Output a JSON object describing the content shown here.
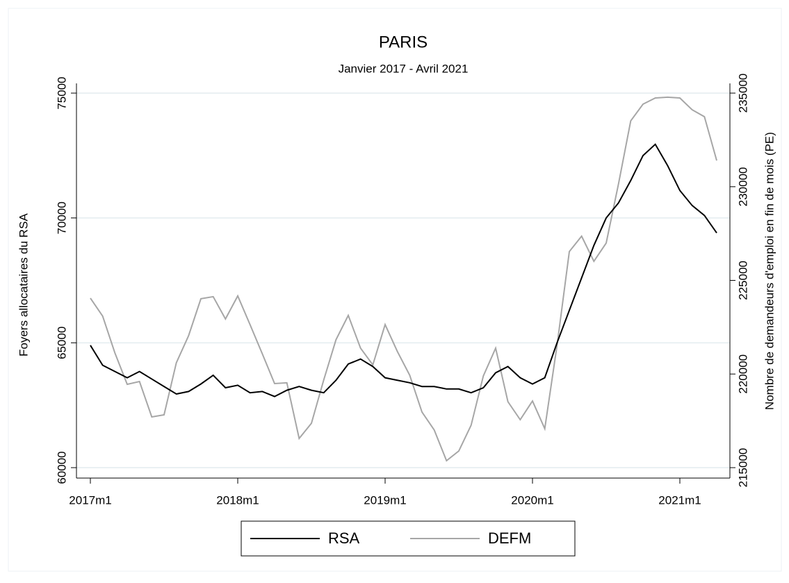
{
  "chart_data": {
    "type": "line",
    "title": "PARIS",
    "subtitle": "Janvier 2017 - Avril 2021",
    "y_label": "Foyers allocataires du RSA",
    "y2_label": "Nombre de demandeurs d'emploi en fin de mois (PE)",
    "x": [
      "2017m1",
      "2017m2",
      "2017m3",
      "2017m4",
      "2017m5",
      "2017m6",
      "2017m7",
      "2017m8",
      "2017m9",
      "2017m10",
      "2017m11",
      "2017m12",
      "2018m1",
      "2018m2",
      "2018m3",
      "2018m4",
      "2018m5",
      "2018m6",
      "2018m7",
      "2018m8",
      "2018m9",
      "2018m10",
      "2018m11",
      "2018m12",
      "2019m1",
      "2019m2",
      "2019m3",
      "2019m4",
      "2019m5",
      "2019m6",
      "2019m7",
      "2019m8",
      "2019m9",
      "2019m10",
      "2019m11",
      "2019m12",
      "2020m1",
      "2020m2",
      "2020m3",
      "2020m4",
      "2020m5",
      "2020m6",
      "2020m7",
      "2020m8",
      "2020m9",
      "2020m10",
      "2020m11",
      "2020m12",
      "2021m1",
      "2021m2",
      "2021m3",
      "2021m4"
    ],
    "xticks": [
      "2017m1",
      "2018m1",
      "2019m1",
      "2020m1",
      "2021m1"
    ],
    "ylim": [
      60000,
      75000
    ],
    "yticks": [
      60000,
      65000,
      70000,
      75000
    ],
    "y2lim": [
      215000,
      235000
    ],
    "y2ticks": [
      215000,
      220000,
      225000,
      230000,
      235000
    ],
    "grid": true,
    "legend": "bottom",
    "series": [
      {
        "name": "RSA",
        "color": "#000000",
        "values": [
          64900,
          64100,
          63850,
          63600,
          63850,
          63550,
          63250,
          62950,
          63050,
          63350,
          63700,
          63200,
          63300,
          63000,
          63050,
          62850,
          63100,
          63250,
          63100,
          63000,
          63500,
          64150,
          64350,
          64050,
          63600,
          63500,
          63400,
          63250,
          63250,
          63150,
          63150,
          63000,
          63200,
          63800,
          64050,
          63600,
          63350,
          63600,
          65000,
          66300,
          67600,
          68900,
          70000,
          70600,
          71500,
          72500,
          72950,
          72100,
          71100,
          70500,
          70100,
          69400
        ]
      },
      {
        "name": "DEFM",
        "color": "#a6a6a6",
        "axis": "y2",
        "values": [
          224050,
          223090,
          221120,
          219450,
          219600,
          217710,
          217820,
          220600,
          222050,
          224020,
          224130,
          222940,
          224170,
          222640,
          221080,
          219490,
          219530,
          216560,
          217370,
          219680,
          221830,
          223130,
          221380,
          220490,
          222640,
          221200,
          219940,
          217970,
          217010,
          215370,
          215890,
          217260,
          219900,
          221380,
          218520,
          217560,
          218560,
          217080,
          221530,
          226540,
          227360,
          226020,
          226990,
          230140,
          233520,
          234410,
          234740,
          234780,
          234740,
          234110,
          233740,
          231400
        ]
      }
    ]
  }
}
